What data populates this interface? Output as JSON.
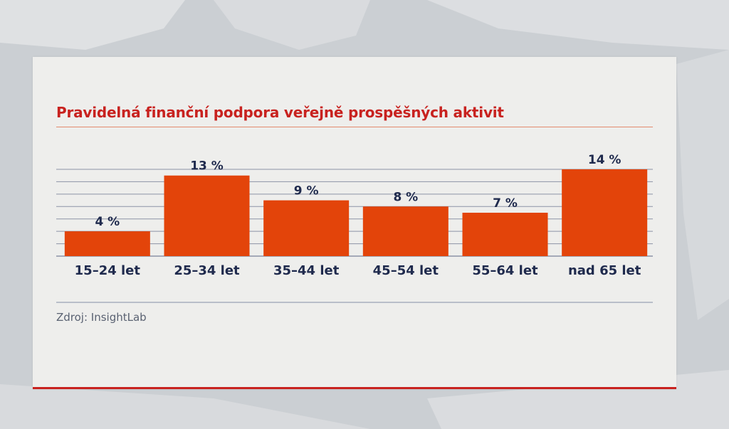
{
  "colors": {
    "accent": "#c8221f",
    "bar": "#e3440a",
    "text": "#1f2a4d",
    "gridline": "#8c93a6",
    "card": "#eeeeec"
  },
  "header": {
    "title": "Pravidelná finanční podpora veřejně prospěšných aktivit"
  },
  "footer": {
    "source": "Zdroj: InsightLab"
  },
  "chart_data": {
    "type": "bar",
    "title": "Pravidelná finanční podpora veřejně prospěšných aktivit",
    "categories": [
      "15–24 let",
      "25–34 let",
      "35–44 let",
      "45–54 let",
      "55–64 let",
      "nad 65 let"
    ],
    "values": [
      4,
      13,
      9,
      8,
      7,
      14
    ],
    "value_labels": [
      "4 %",
      "13 %",
      "9 %",
      "8 %",
      "7 %",
      "14 %"
    ],
    "unit": "%",
    "ylim": [
      0,
      14
    ],
    "grid": true,
    "legend": "none"
  }
}
